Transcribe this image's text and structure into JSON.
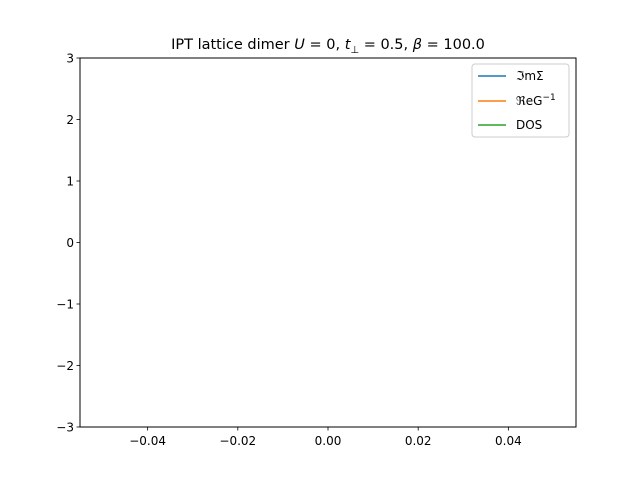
{
  "chart_data": {
    "type": "line",
    "title": {
      "prefix": "IPT lattice dimer ",
      "u_symbol": "U",
      "u_value": " = 0, ",
      "t_symbol": "t",
      "t_sub": "⊥",
      "t_value": " = 0.5, ",
      "beta_symbol": "β",
      "beta_value": " = 100.0"
    },
    "xlabel": "",
    "ylabel": "",
    "xlim": [
      -0.055,
      0.055
    ],
    "ylim": [
      -3,
      3
    ],
    "x_ticks": [
      -0.04,
      -0.02,
      0.0,
      0.02,
      0.04
    ],
    "x_tick_labels": [
      "−0.04",
      "−0.02",
      "0.00",
      "0.02",
      "0.04"
    ],
    "y_ticks": [
      -3,
      -2,
      -1,
      0,
      1,
      2,
      3
    ],
    "y_tick_labels": [
      "−3",
      "−2",
      "−1",
      "0",
      "1",
      "2",
      "3"
    ],
    "grid": false,
    "legend_placement": "top-right",
    "series": [
      {
        "name": "ℑmΣ",
        "color": "#1f77b4",
        "x": [],
        "y": []
      },
      {
        "name": "ℜeG",
        "name_sup": "−1",
        "color": "#ff7f0e",
        "x": [],
        "y": []
      },
      {
        "name": "DOS",
        "color": "#2ca02c",
        "x": [],
        "y": []
      }
    ]
  }
}
